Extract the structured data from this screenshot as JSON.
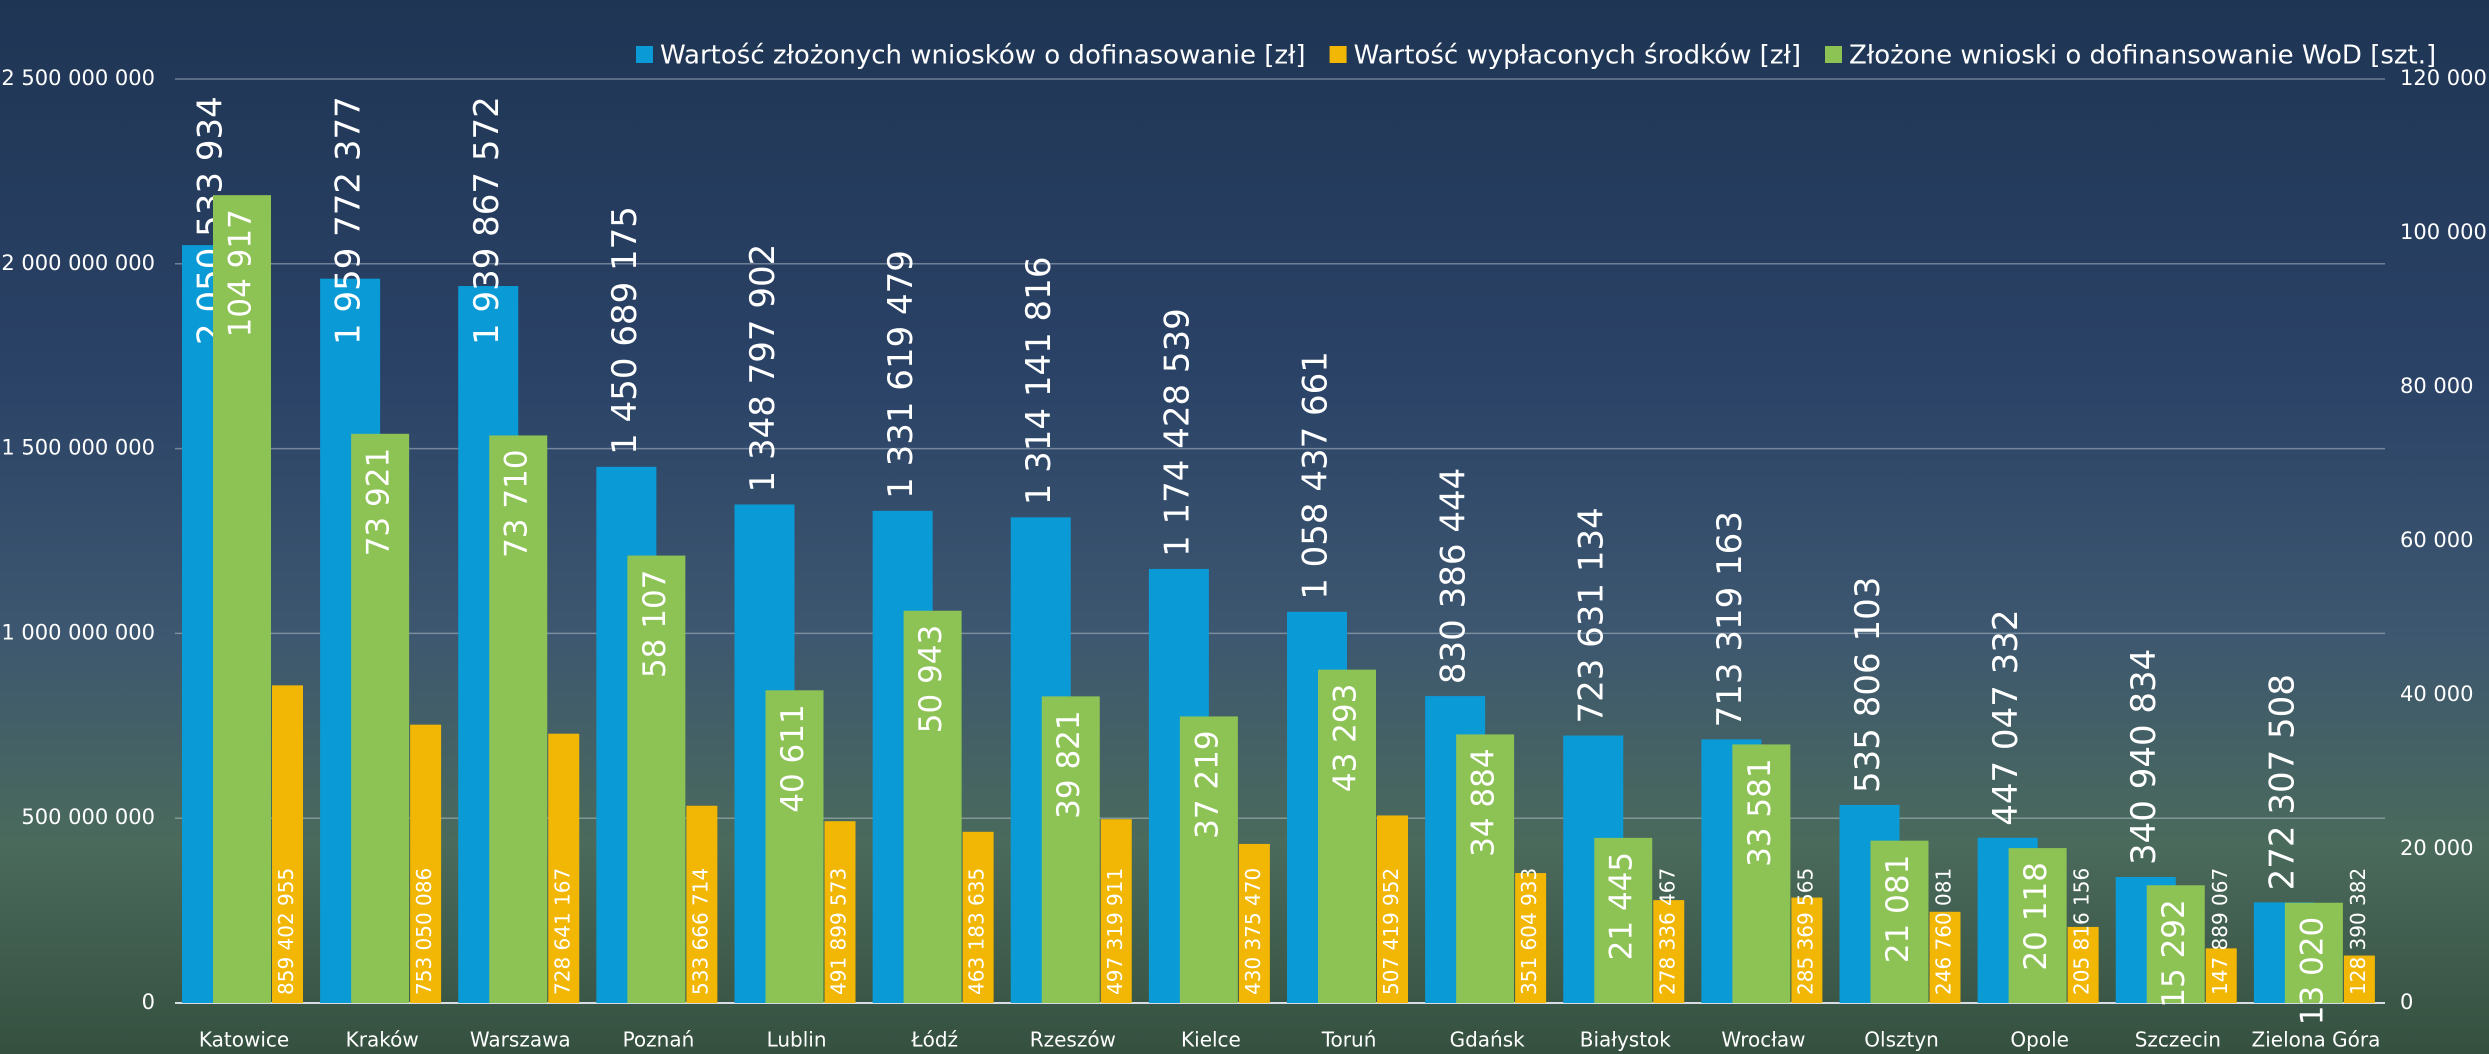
{
  "chart_data": {
    "type": "bar",
    "categories": [
      "Katowice",
      "Kraków",
      "Warszawa",
      "Poznań",
      "Lublin",
      "Łódź",
      "Rzeszów",
      "Kielce",
      "Toruń",
      "Gdańsk",
      "Białystok",
      "Wrocław",
      "Olsztyn",
      "Opole",
      "Szczecin",
      "Zielona Góra"
    ],
    "series": [
      {
        "name": "Wartość złożonych wniosków o dofinasowanie [zł]",
        "color": "#0a9bd7",
        "axis": "y",
        "values": [
          2050533934,
          1959772377,
          1939867572,
          1450689175,
          1348797902,
          1331619479,
          1314141816,
          1174428539,
          1058437661,
          830386444,
          723631134,
          713319163,
          535806103,
          447047332,
          340940834,
          272307508
        ],
        "value_labels": [
          "2 050 533 934",
          "1 959 772 377",
          "1 939 867 572",
          "1 450 689 175",
          "1 348 797 902",
          "1 331 619 479",
          "1 314 141 816",
          "1 174 428 539",
          "1 058 437 661",
          "830 386 444",
          "723 631 134",
          "713 319 163",
          "535 806 103",
          "447 047 332",
          "340 940 834",
          "272 307 508"
        ]
      },
      {
        "name": "Wartość wypłaconych środków [zł]",
        "color": "#f2b705",
        "axis": "y",
        "values": [
          859402955,
          753050086,
          728641167,
          533666714,
          491899573,
          463183635,
          497319911,
          430375470,
          507419952,
          351604933,
          278336467,
          285369565,
          246760081,
          205816156,
          147889067,
          128390382
        ],
        "value_labels": [
          "859 402 955",
          "753 050 086",
          "728 641 167",
          "533 666 714",
          "491 899 573",
          "463 183 635",
          "497 319 911",
          "430 375 470",
          "507 419 952",
          "351 604 933",
          "278 336 467",
          "285 369 565",
          "246 760 081",
          "205 816 156",
          "147 889 067",
          "128 390 382"
        ]
      },
      {
        "name": "Złożone wnioski o dofinansowanie WoD [szt.]",
        "color": "#8dc255",
        "axis": "y2",
        "values": [
          104917,
          73921,
          73710,
          58107,
          40611,
          50943,
          39821,
          37219,
          43293,
          34884,
          21445,
          33581,
          21081,
          20118,
          15292,
          13020
        ],
        "value_labels": [
          "104 917",
          "73 921",
          "73 710",
          "58 107",
          "40 611",
          "50 943",
          "39 821",
          "37 219",
          "43 293",
          "34 884",
          "21 445",
          "33 581",
          "21 081",
          "20 118",
          "15 292",
          "13 020"
        ]
      }
    ],
    "ylim": [
      0,
      2500000000
    ],
    "yticks": [
      0,
      {
        "value": 500000000,
        "label": "500 000 000"
      },
      {
        "value": 1000000000,
        "label": "1 000 000 000"
      },
      {
        "value": 1500000000,
        "label": "1 500 000 000"
      },
      {
        "value": 2000000000,
        "label": "2 000 000 000"
      },
      {
        "value": 2500000000,
        "label": "2 500 000 000"
      }
    ],
    "y2lim": [
      0,
      120000
    ],
    "y2ticks": [
      0,
      {
        "value": 20000,
        "label": "20 000"
      },
      {
        "value": 40000,
        "label": "40 000"
      },
      {
        "value": 60000,
        "label": "60 000"
      },
      {
        "value": 80000,
        "label": "80 000"
      },
      {
        "value": 100000,
        "label": "100 000"
      },
      {
        "value": 120000,
        "label": "120 000"
      }
    ],
    "grid": true,
    "legend": "top"
  }
}
